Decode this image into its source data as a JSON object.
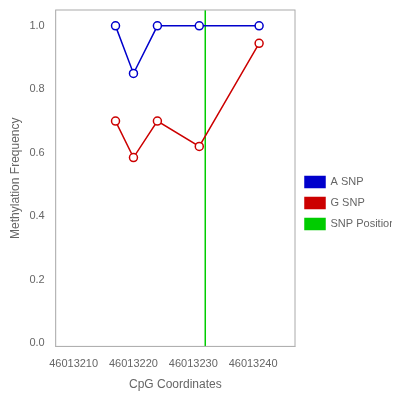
{
  "chart_data": {
    "type": "line",
    "xlabel": "CpG Coordinates",
    "ylabel": "Methylation Frequency",
    "series": [
      {
        "name": "A SNP",
        "color": "#0000CC",
        "marker": "circle",
        "x": [
          46013217,
          46013220,
          46013224,
          46013231,
          46013241
        ],
        "values": [
          1.0,
          0.85,
          1.0,
          1.0,
          1.0
        ]
      },
      {
        "name": "G SNP",
        "color": "#CC0000",
        "marker": "circle",
        "x": [
          46013217,
          46013220,
          46013224,
          46013231,
          46013241
        ],
        "values": [
          0.7,
          0.585,
          0.7,
          0.62,
          0.945
        ]
      },
      {
        "name": "SNP Position",
        "color": "#00CC00",
        "type": "vline",
        "x": 46013232
      }
    ],
    "xlim": [
      46013207,
      46013247
    ],
    "xticks": [
      46013210,
      46013220,
      46013230,
      46013240
    ],
    "ylim": [
      -0.01,
      1.05
    ],
    "yticks": [
      {
        "value": 0,
        "label": "0.0"
      },
      0.2,
      0.4,
      0.6,
      0.8,
      {
        "value": 1,
        "label": "1.0"
      }
    ],
    "grid": false,
    "legend": "right"
  }
}
